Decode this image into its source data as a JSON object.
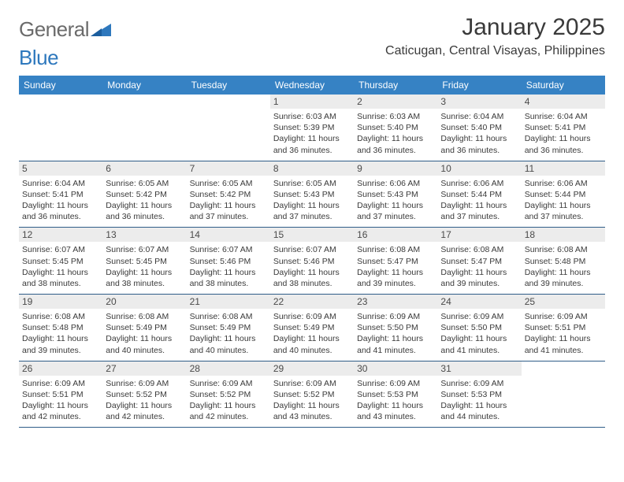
{
  "logo": {
    "word1": "General",
    "word2": "Blue",
    "text_color": "#6b6b6b",
    "accent_color": "#2e78bd"
  },
  "title": {
    "month": "January 2025",
    "location": "Caticugan, Central Visayas, Philippines"
  },
  "styling": {
    "header_bg": "#3682c4",
    "header_text": "#ffffff",
    "daynum_bg": "#ececec",
    "daynum_text": "#4a4a4a",
    "body_text": "#3a3a3a",
    "week_divider": "#2f5d88",
    "page_bg": "#ffffff",
    "dow_fontsize": 12,
    "daynum_fontsize": 12,
    "info_fontsize": 10.5,
    "title_fontsize": 30,
    "location_fontsize": 16
  },
  "dow": [
    "Sunday",
    "Monday",
    "Tuesday",
    "Wednesday",
    "Thursday",
    "Friday",
    "Saturday"
  ],
  "weeks": [
    [
      null,
      null,
      null,
      {
        "n": "1",
        "sr": "6:03 AM",
        "ss": "5:39 PM",
        "dl": "11 hours and 36 minutes."
      },
      {
        "n": "2",
        "sr": "6:03 AM",
        "ss": "5:40 PM",
        "dl": "11 hours and 36 minutes."
      },
      {
        "n": "3",
        "sr": "6:04 AM",
        "ss": "5:40 PM",
        "dl": "11 hours and 36 minutes."
      },
      {
        "n": "4",
        "sr": "6:04 AM",
        "ss": "5:41 PM",
        "dl": "11 hours and 36 minutes."
      }
    ],
    [
      {
        "n": "5",
        "sr": "6:04 AM",
        "ss": "5:41 PM",
        "dl": "11 hours and 36 minutes."
      },
      {
        "n": "6",
        "sr": "6:05 AM",
        "ss": "5:42 PM",
        "dl": "11 hours and 36 minutes."
      },
      {
        "n": "7",
        "sr": "6:05 AM",
        "ss": "5:42 PM",
        "dl": "11 hours and 37 minutes."
      },
      {
        "n": "8",
        "sr": "6:05 AM",
        "ss": "5:43 PM",
        "dl": "11 hours and 37 minutes."
      },
      {
        "n": "9",
        "sr": "6:06 AM",
        "ss": "5:43 PM",
        "dl": "11 hours and 37 minutes."
      },
      {
        "n": "10",
        "sr": "6:06 AM",
        "ss": "5:44 PM",
        "dl": "11 hours and 37 minutes."
      },
      {
        "n": "11",
        "sr": "6:06 AM",
        "ss": "5:44 PM",
        "dl": "11 hours and 37 minutes."
      }
    ],
    [
      {
        "n": "12",
        "sr": "6:07 AM",
        "ss": "5:45 PM",
        "dl": "11 hours and 38 minutes."
      },
      {
        "n": "13",
        "sr": "6:07 AM",
        "ss": "5:45 PM",
        "dl": "11 hours and 38 minutes."
      },
      {
        "n": "14",
        "sr": "6:07 AM",
        "ss": "5:46 PM",
        "dl": "11 hours and 38 minutes."
      },
      {
        "n": "15",
        "sr": "6:07 AM",
        "ss": "5:46 PM",
        "dl": "11 hours and 38 minutes."
      },
      {
        "n": "16",
        "sr": "6:08 AM",
        "ss": "5:47 PM",
        "dl": "11 hours and 39 minutes."
      },
      {
        "n": "17",
        "sr": "6:08 AM",
        "ss": "5:47 PM",
        "dl": "11 hours and 39 minutes."
      },
      {
        "n": "18",
        "sr": "6:08 AM",
        "ss": "5:48 PM",
        "dl": "11 hours and 39 minutes."
      }
    ],
    [
      {
        "n": "19",
        "sr": "6:08 AM",
        "ss": "5:48 PM",
        "dl": "11 hours and 39 minutes."
      },
      {
        "n": "20",
        "sr": "6:08 AM",
        "ss": "5:49 PM",
        "dl": "11 hours and 40 minutes."
      },
      {
        "n": "21",
        "sr": "6:08 AM",
        "ss": "5:49 PM",
        "dl": "11 hours and 40 minutes."
      },
      {
        "n": "22",
        "sr": "6:09 AM",
        "ss": "5:49 PM",
        "dl": "11 hours and 40 minutes."
      },
      {
        "n": "23",
        "sr": "6:09 AM",
        "ss": "5:50 PM",
        "dl": "11 hours and 41 minutes."
      },
      {
        "n": "24",
        "sr": "6:09 AM",
        "ss": "5:50 PM",
        "dl": "11 hours and 41 minutes."
      },
      {
        "n": "25",
        "sr": "6:09 AM",
        "ss": "5:51 PM",
        "dl": "11 hours and 41 minutes."
      }
    ],
    [
      {
        "n": "26",
        "sr": "6:09 AM",
        "ss": "5:51 PM",
        "dl": "11 hours and 42 minutes."
      },
      {
        "n": "27",
        "sr": "6:09 AM",
        "ss": "5:52 PM",
        "dl": "11 hours and 42 minutes."
      },
      {
        "n": "28",
        "sr": "6:09 AM",
        "ss": "5:52 PM",
        "dl": "11 hours and 42 minutes."
      },
      {
        "n": "29",
        "sr": "6:09 AM",
        "ss": "5:52 PM",
        "dl": "11 hours and 43 minutes."
      },
      {
        "n": "30",
        "sr": "6:09 AM",
        "ss": "5:53 PM",
        "dl": "11 hours and 43 minutes."
      },
      {
        "n": "31",
        "sr": "6:09 AM",
        "ss": "5:53 PM",
        "dl": "11 hours and 44 minutes."
      },
      null
    ]
  ],
  "labels": {
    "sunrise": "Sunrise: ",
    "sunset": "Sunset: ",
    "daylight": "Daylight: "
  }
}
